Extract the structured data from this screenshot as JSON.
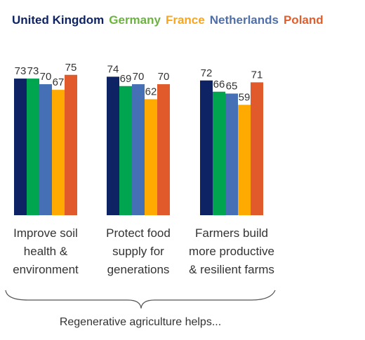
{
  "legend": [
    {
      "name": "United Kingdom",
      "color": "#0d2363"
    },
    {
      "name": "Germany",
      "color": "#6cb33f"
    },
    {
      "name": "France",
      "color": "#f9a61a"
    },
    {
      "name": "Netherlands",
      "color": "#4f6fa8"
    },
    {
      "name": "Poland",
      "color": "#e35d2b"
    }
  ],
  "footer": "Regenerative agriculture helps...",
  "chart_data": {
    "type": "bar",
    "categories": [
      "Improve soil\nhealth &\nenvironment",
      "Protect food\nsupply for\ngenerations",
      "Farmers build\nmore productive\n& resilient farms"
    ],
    "series": [
      {
        "name": "United Kingdom",
        "values": [
          73,
          74,
          72
        ],
        "color": "#0d2363"
      },
      {
        "name": "Germany",
        "values": [
          73,
          69,
          66
        ],
        "color": "#00a64f"
      },
      {
        "name": "France",
        "values": [
          67,
          62,
          59
        ],
        "color": "#ffaa00"
      },
      {
        "name": "Netherlands",
        "values": [
          70,
          70,
          65
        ],
        "color": "#4570b5"
      },
      {
        "name": "Poland",
        "values": [
          75,
          70,
          71
        ],
        "color": "#e05a2b"
      }
    ],
    "series_order_drawn": [
      "United Kingdom",
      "Germany",
      "Netherlands",
      "France",
      "Poland"
    ],
    "data_labels": true,
    "grid": false
  }
}
